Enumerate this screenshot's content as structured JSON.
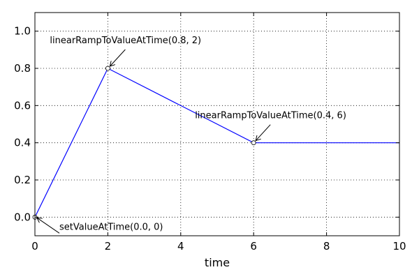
{
  "chart_data": {
    "type": "line",
    "xlabel": "time",
    "ylabel": "",
    "xlim": [
      0,
      10
    ],
    "ylim": [
      -0.1,
      1.1
    ],
    "xticks": [
      "0",
      "2",
      "4",
      "6",
      "8",
      "10"
    ],
    "yticks": [
      "0.0",
      "0.2",
      "0.4",
      "0.6",
      "0.8",
      "1.0"
    ],
    "grid": true,
    "series": [
      {
        "color": "#0000ff",
        "points": [
          [
            0,
            0.0
          ],
          [
            2,
            0.8
          ],
          [
            6,
            0.4
          ],
          [
            10,
            0.4
          ]
        ]
      }
    ],
    "markers": [
      [
        0,
        0.0
      ],
      [
        2,
        0.8
      ],
      [
        6,
        0.4
      ]
    ],
    "annotations": [
      {
        "text": "setValueAtTime(0.0, 0)",
        "x": 0,
        "y": 0.0
      },
      {
        "text": "linearRampToValueAtTime(0.8, 2)",
        "x": 2,
        "y": 0.8
      },
      {
        "text": "linearRampToValueAtTime(0.4, 6)",
        "x": 6,
        "y": 0.4
      }
    ]
  }
}
